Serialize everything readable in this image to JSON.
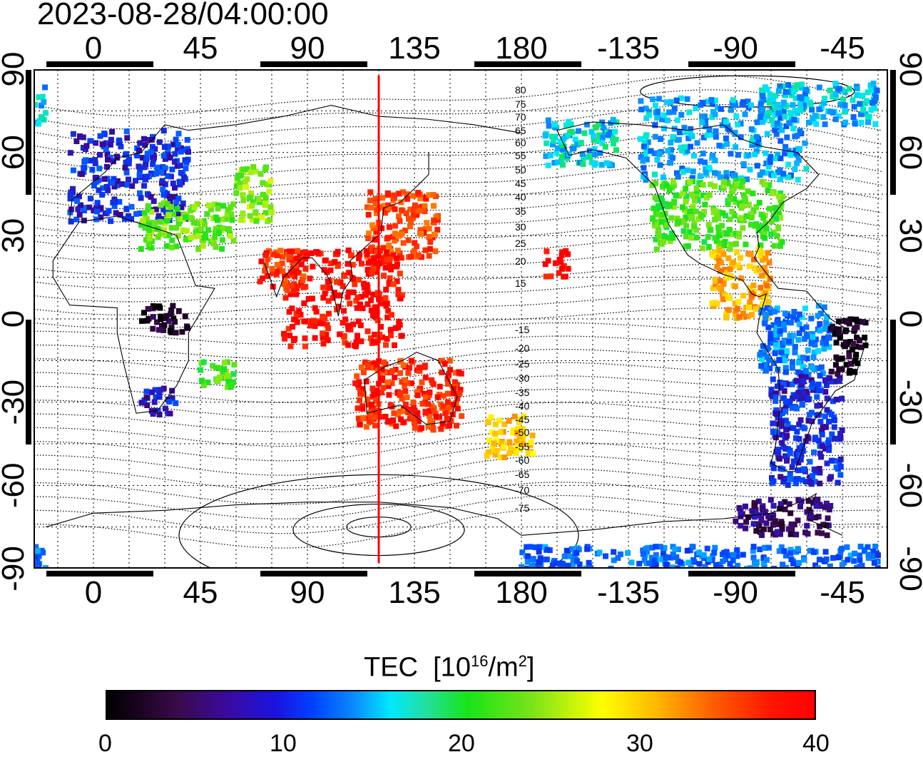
{
  "title": "2023-08-28/04:00:00",
  "axes": {
    "longitude_ticks": [
      "0",
      "45",
      "90",
      "135",
      "180",
      "-135",
      "-90",
      "-45"
    ],
    "latitude_ticks": [
      "90",
      "60",
      "30",
      "0",
      "-30",
      "-60",
      "-90"
    ]
  },
  "subsolar_meridian_deg": 120,
  "contour_labels": [
    "80",
    "75",
    "70",
    "65",
    "60",
    "55",
    "50",
    "45",
    "40",
    "35",
    "30",
    "25",
    "20",
    "15",
    "-15",
    "-20",
    "-25",
    "-30",
    "-35",
    "-40",
    "-45",
    "-50",
    "-55",
    "-60",
    "-65",
    "-70",
    "-75"
  ],
  "colorbar": {
    "quantity": "TEC",
    "unit_prefix": "[10",
    "unit_exp1": "16",
    "unit_mid": "/m",
    "unit_exp2": "2",
    "unit_suffix": "]",
    "tick_labels": [
      "0",
      "10",
      "20",
      "30",
      "40"
    ],
    "range": [
      0,
      40
    ],
    "colors": [
      "#000000",
      "#3a0aa0",
      "#0040ff",
      "#00e8ff",
      "#18e418",
      "#ffff00",
      "#ff5a00",
      "#ff0000"
    ]
  },
  "regions": [
    {
      "name": "europe",
      "lon": [
        -10,
        40
      ],
      "lat": [
        35,
        68
      ],
      "value": 9
    },
    {
      "name": "mediterranean",
      "lon": [
        20,
        60
      ],
      "lat": [
        25,
        42
      ],
      "value": 23
    },
    {
      "name": "central-asia",
      "lon": [
        60,
        75
      ],
      "lat": [
        35,
        55
      ],
      "value": 24
    },
    {
      "name": "east-asia",
      "lon": [
        115,
        145
      ],
      "lat": [
        22,
        46
      ],
      "value": 37
    },
    {
      "name": "southeast-asia",
      "lon": [
        80,
        130
      ],
      "lat": [
        -10,
        25
      ],
      "value": 40
    },
    {
      "name": "india",
      "lon": [
        70,
        90
      ],
      "lat": [
        10,
        25
      ],
      "value": 38
    },
    {
      "name": "africa-central",
      "lon": [
        20,
        40
      ],
      "lat": [
        -5,
        5
      ],
      "value": 2
    },
    {
      "name": "africa-south",
      "lon": [
        20,
        35
      ],
      "lat": [
        -35,
        -25
      ],
      "value": 8
    },
    {
      "name": "madagascar",
      "lon": [
        45,
        60
      ],
      "lat": [
        -25,
        -15
      ],
      "value": 22
    },
    {
      "name": "australia",
      "lon": [
        110,
        155
      ],
      "lat": [
        -40,
        -15
      ],
      "value": 38
    },
    {
      "name": "new-zealand",
      "lon": [
        165,
        185
      ],
      "lat": [
        -50,
        -35
      ],
      "value": 31
    },
    {
      "name": "pacific",
      "lon": [
        190,
        200
      ],
      "lat": [
        15,
        25
      ],
      "value": 40
    },
    {
      "name": "alaska",
      "lon": [
        -170,
        -140
      ],
      "lat": [
        55,
        72
      ],
      "value": 16
    },
    {
      "name": "canada",
      "lon": [
        -130,
        -60
      ],
      "lat": [
        50,
        80
      ],
      "value": 14
    },
    {
      "name": "usa",
      "lon": [
        -125,
        -70
      ],
      "lat": [
        25,
        50
      ],
      "value": 22
    },
    {
      "name": "central-america",
      "lon": [
        -100,
        -75
      ],
      "lat": [
        0,
        25
      ],
      "value": 32
    },
    {
      "name": "south-america-north",
      "lon": [
        -80,
        -50
      ],
      "lat": [
        -20,
        5
      ],
      "value": 13
    },
    {
      "name": "south-america-south",
      "lon": [
        -75,
        -45
      ],
      "lat": [
        -60,
        -20
      ],
      "value": 9
    },
    {
      "name": "atlantic-east",
      "lon": [
        -50,
        -35
      ],
      "lat": [
        -20,
        0
      ],
      "value": 1
    },
    {
      "name": "antarctic-peninsula",
      "lon": [
        -90,
        -50
      ],
      "lat": [
        -78,
        -65
      ],
      "value": 5
    },
    {
      "name": "antarctic-coast",
      "lon": [
        -180,
        -20
      ],
      "lat": [
        -90,
        -82
      ],
      "value": 12
    },
    {
      "name": "greenland",
      "lon": [
        -80,
        -20
      ],
      "lat": [
        70,
        85
      ],
      "value": 15
    }
  ]
}
